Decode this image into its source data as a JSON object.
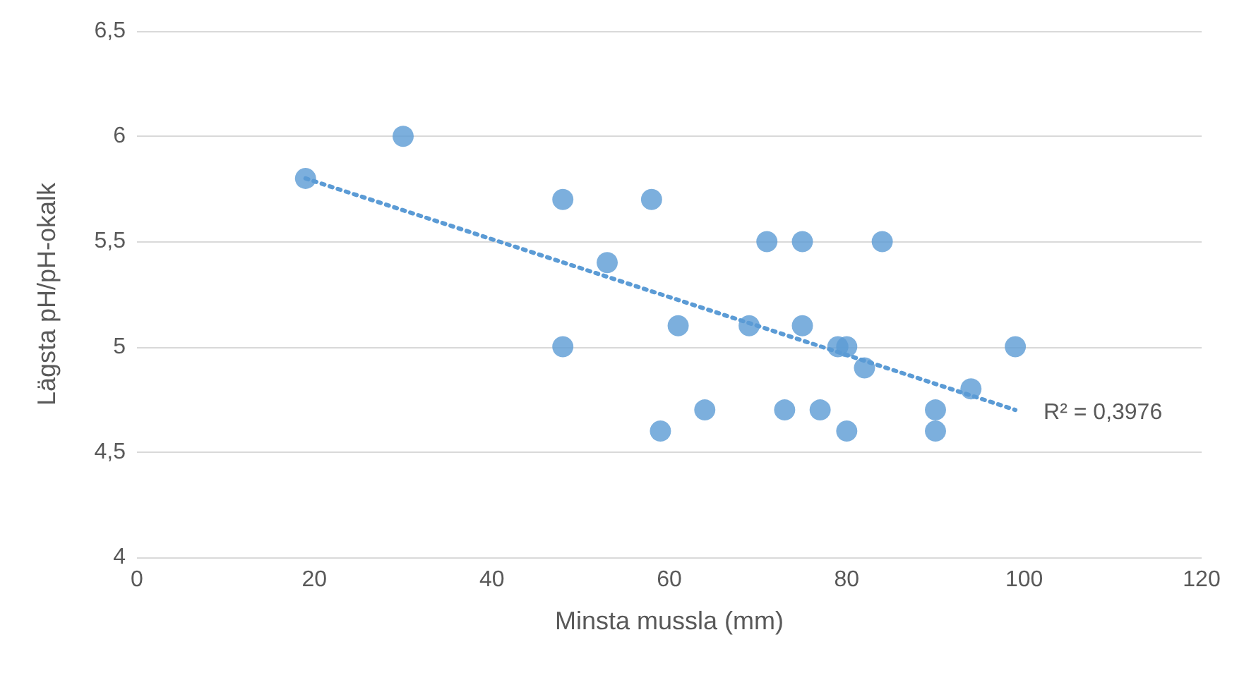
{
  "chart_data": {
    "type": "scatter",
    "xlabel": "Minsta mussla (mm)",
    "ylabel": "Lägsta pH/pH-okalk",
    "series": [
      {
        "type": "scatter",
        "color": "#5b9bd5",
        "x": [
          19,
          30,
          48,
          48,
          53,
          58,
          59,
          61,
          64,
          69,
          71,
          73,
          75,
          75,
          77,
          79,
          80,
          80,
          82,
          84,
          90,
          90,
          94,
          99
        ],
        "values": [
          5.8,
          6.0,
          5.7,
          5.0,
          5.4,
          5.7,
          4.6,
          5.1,
          4.7,
          5.1,
          5.5,
          4.7,
          5.5,
          5.1,
          4.7,
          5.0,
          5.0,
          4.6,
          4.9,
          5.5,
          4.7,
          4.6,
          4.8,
          5.0
        ]
      },
      {
        "type": "line",
        "color": "#5b9bd5",
        "line_style": "dotted",
        "marker": "none",
        "x": [
          19,
          99
        ],
        "values": [
          5.8,
          4.7
        ]
      }
    ],
    "xlim": [
      0,
      120
    ],
    "xticks": [
      0,
      20,
      40,
      60,
      80,
      100,
      120
    ],
    "ylim": [
      4,
      6.5
    ],
    "yticks": [
      4,
      {
        "value": 4.5,
        "label": "4,5"
      },
      5,
      {
        "value": 5.5,
        "label": "5,5"
      },
      6,
      {
        "value": 6.5,
        "label": "6,5"
      }
    ],
    "grid": "y",
    "marker": "circle",
    "annotations": [
      "R² = 0,3976"
    ]
  }
}
